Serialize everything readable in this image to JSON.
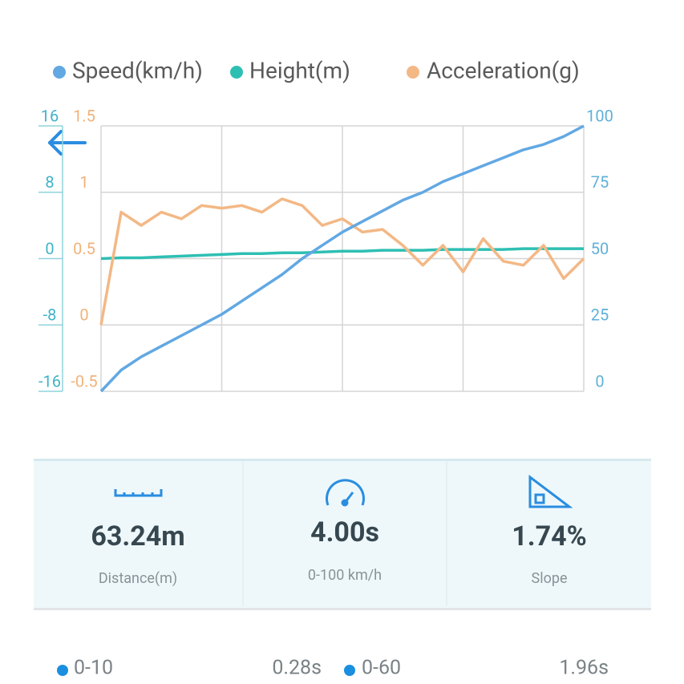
{
  "chart_data": {
    "type": "line",
    "legend": "top",
    "grid": true,
    "series": [
      {
        "name": "Speed(km/h)",
        "color": "#62a8e3",
        "axis": "y2",
        "values": [
          0,
          8,
          13,
          17,
          21,
          25,
          29,
          34,
          39,
          44,
          50,
          55,
          60,
          64,
          68,
          72,
          75,
          79,
          82,
          85,
          88,
          91,
          93,
          96,
          100
        ]
      },
      {
        "name": "Height(m)",
        "color": "#2ebfb3",
        "axis": "y",
        "values": [
          0,
          0.1,
          0.1,
          0.2,
          0.3,
          0.4,
          0.5,
          0.6,
          0.6,
          0.7,
          0.7,
          0.8,
          0.9,
          0.9,
          1,
          1,
          1,
          1.1,
          1.1,
          1.1,
          1.1,
          1.2,
          1.2,
          1.2,
          1.2
        ]
      },
      {
        "name": "Acceleration(g)",
        "color": "#f3b886",
        "axis": "y3",
        "values": [
          0,
          0.85,
          0.75,
          0.85,
          0.8,
          0.9,
          0.88,
          0.9,
          0.85,
          0.95,
          0.9,
          0.75,
          0.8,
          0.7,
          0.72,
          0.6,
          0.45,
          0.6,
          0.4,
          0.65,
          0.48,
          0.45,
          0.6,
          0.35,
          0.5
        ]
      }
    ],
    "ylim": [
      -16,
      16
    ],
    "yticks": [
      -16,
      -8,
      0,
      8,
      16
    ],
    "y3lim": [
      -0.5,
      1.5
    ],
    "y3ticks": [
      -0.5,
      0,
      0.5,
      1,
      1.5
    ],
    "y2lim": [
      0,
      100
    ],
    "y2ticks": [
      0,
      25,
      50,
      75,
      100
    ]
  },
  "stats": [
    {
      "value": "63.24m",
      "label": "Distance(m)"
    },
    {
      "value": "4.00s",
      "label": "0-100 km/h"
    },
    {
      "value": "1.74%",
      "label": "Slope"
    }
  ],
  "splits": [
    {
      "range": "0-10",
      "time": "0.28s"
    },
    {
      "range": "0-60",
      "time": "1.96s"
    }
  ]
}
